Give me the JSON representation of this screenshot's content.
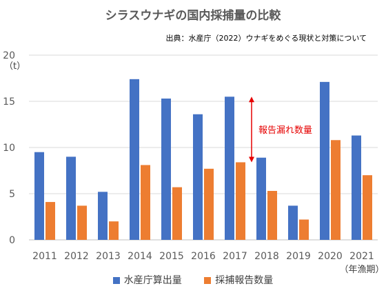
{
  "title": "シラスウナギの国内採捕量の比較",
  "source": "出典：水産庁（2022）ウナギをめぐる現状と対策について",
  "chart_data": {
    "type": "bar",
    "categories": [
      "2011",
      "2012",
      "2013",
      "2014",
      "2015",
      "2016",
      "2017",
      "2018",
      "2019",
      "2020",
      "2021"
    ],
    "series": [
      {
        "name": "水産庁算出量",
        "color": "#4472c4",
        "values": [
          9.5,
          9.0,
          5.2,
          17.4,
          15.3,
          13.6,
          15.5,
          8.9,
          3.7,
          17.1,
          11.3
        ]
      },
      {
        "name": "採捕報告数量",
        "color": "#ed7d31",
        "values": [
          4.1,
          3.7,
          2.0,
          8.1,
          5.7,
          7.7,
          8.4,
          5.3,
          2.2,
          10.8,
          7.0
        ]
      }
    ],
    "ylabel": "（t）",
    "xlabel": "（年漁期）",
    "ylim": [
      0,
      20
    ],
    "yticks": [
      0,
      5,
      10,
      15,
      20
    ],
    "grid": true,
    "legend": "bottom",
    "annotation": {
      "text": "報告漏れ数量",
      "category": "2017",
      "color": "#e60000"
    }
  }
}
